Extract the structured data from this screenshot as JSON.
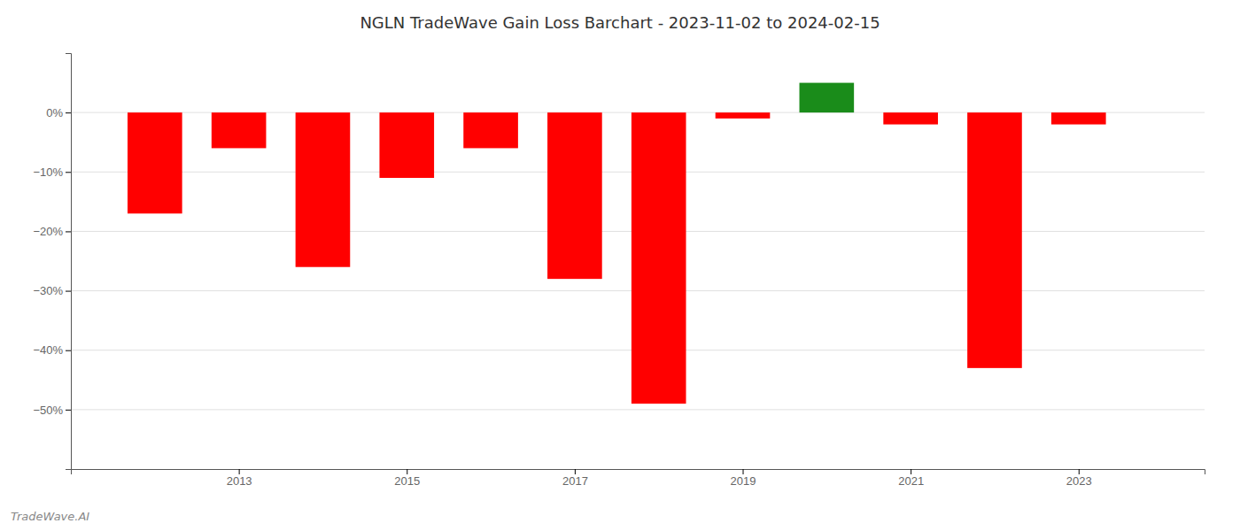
{
  "chart_data": {
    "type": "bar",
    "title": "NGLN TradeWave Gain Loss Barchart - 2023-11-02 to 2024-02-15",
    "annotations": [
      "TradeWave.AI"
    ],
    "x": [
      2012,
      2013,
      2014,
      2015,
      2016,
      2017,
      2018,
      2019,
      2020,
      2021,
      2022,
      2023
    ],
    "values": [
      -17,
      -6,
      -26,
      -11,
      -6,
      -28,
      -49,
      -1,
      5,
      -2,
      -43,
      -2
    ],
    "colors": [
      "#FF0000",
      "#FF0000",
      "#FF0000",
      "#FF0000",
      "#FF0000",
      "#FF0000",
      "#FF0000",
      "#FF0000",
      "#1a8c1a",
      "#FF0000",
      "#FF0000",
      "#FF0000"
    ],
    "xlim": [
      2011.0,
      2024.5
    ],
    "xticks": [
      2013,
      2015,
      2017,
      2019,
      2021,
      2023
    ],
    "ylim": [
      -60,
      10
    ],
    "yticks": [
      {
        "value": 0,
        "label": "0%"
      },
      {
        "value": -10,
        "label": "−10%"
      },
      {
        "value": -20,
        "label": "−20%"
      },
      {
        "value": -30,
        "label": "−30%"
      },
      {
        "value": -40,
        "label": "−40%"
      },
      {
        "value": -50,
        "label": "−50%"
      }
    ],
    "grid": true
  }
}
